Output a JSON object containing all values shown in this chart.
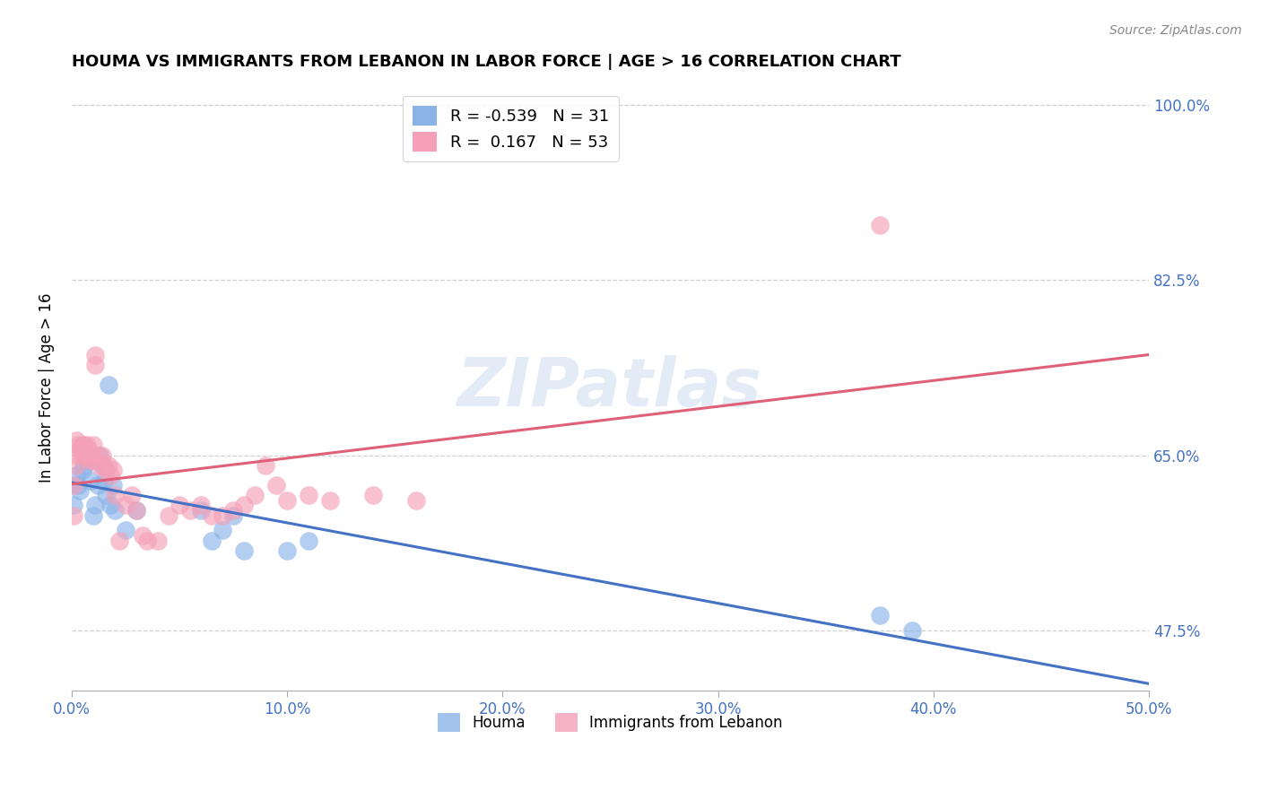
{
  "title": "HOUMA VS IMMIGRANTS FROM LEBANON IN LABOR FORCE | AGE > 16 CORRELATION CHART",
  "source": "Source: ZipAtlas.com",
  "xlabel_ticks": [
    "0.0%",
    "10.0%",
    "20.0%",
    "30.0%",
    "40.0%",
    "50.0%"
  ],
  "xlabel_vals": [
    0.0,
    0.1,
    0.2,
    0.3,
    0.4,
    0.5
  ],
  "ylabel_ticks": [
    "100.0%",
    "82.5%",
    "65.0%",
    "47.5%"
  ],
  "ylabel_vals": [
    1.0,
    0.825,
    0.65,
    0.475
  ],
  "ylabel_label": "In Labor Force | Age > 16",
  "legend_labels": [
    "Houma",
    "Immigrants from Lebanon"
  ],
  "houma_R": -0.539,
  "houma_N": 31,
  "lebanon_R": 0.167,
  "lebanon_N": 53,
  "houma_color": "#8ab4e8",
  "lebanon_color": "#f4a0b8",
  "houma_line_color": "#4472c4",
  "lebanon_line_color": "#e0607a",
  "watermark": "ZIPatlas",
  "houma_x": [
    0.001,
    0.002,
    0.003,
    0.004,
    0.005,
    0.006,
    0.007,
    0.008,
    0.009,
    0.01,
    0.011,
    0.012,
    0.013,
    0.014,
    0.015,
    0.016,
    0.017,
    0.018,
    0.019,
    0.02,
    0.025,
    0.03,
    0.06,
    0.065,
    0.07,
    0.075,
    0.08,
    0.1,
    0.11,
    0.375,
    0.39
  ],
  "houma_y": [
    0.6,
    0.63,
    0.62,
    0.615,
    0.635,
    0.64,
    0.645,
    0.65,
    0.625,
    0.59,
    0.6,
    0.62,
    0.65,
    0.64,
    0.625,
    0.61,
    0.72,
    0.6,
    0.62,
    0.595,
    0.575,
    0.595,
    0.595,
    0.565,
    0.575,
    0.59,
    0.555,
    0.555,
    0.565,
    0.49,
    0.475
  ],
  "lebanon_x": [
    0.001,
    0.001,
    0.002,
    0.002,
    0.003,
    0.003,
    0.004,
    0.005,
    0.005,
    0.006,
    0.006,
    0.007,
    0.007,
    0.008,
    0.008,
    0.009,
    0.01,
    0.01,
    0.011,
    0.011,
    0.012,
    0.013,
    0.014,
    0.015,
    0.016,
    0.017,
    0.018,
    0.019,
    0.02,
    0.022,
    0.025,
    0.028,
    0.03,
    0.033,
    0.035,
    0.04,
    0.045,
    0.05,
    0.055,
    0.06,
    0.065,
    0.07,
    0.075,
    0.08,
    0.085,
    0.09,
    0.095,
    0.1,
    0.11,
    0.12,
    0.14,
    0.16,
    0.375
  ],
  "lebanon_y": [
    0.59,
    0.62,
    0.64,
    0.665,
    0.66,
    0.65,
    0.655,
    0.66,
    0.65,
    0.655,
    0.66,
    0.66,
    0.65,
    0.655,
    0.645,
    0.65,
    0.66,
    0.645,
    0.75,
    0.74,
    0.65,
    0.64,
    0.65,
    0.64,
    0.635,
    0.64,
    0.63,
    0.635,
    0.61,
    0.565,
    0.6,
    0.61,
    0.595,
    0.57,
    0.565,
    0.565,
    0.59,
    0.6,
    0.595,
    0.6,
    0.59,
    0.59,
    0.595,
    0.6,
    0.61,
    0.64,
    0.62,
    0.605,
    0.61,
    0.605,
    0.61,
    0.605,
    0.88
  ],
  "xlim": [
    0.0,
    0.5
  ],
  "ylim": [
    0.415,
    1.02
  ],
  "title_fontsize": 13,
  "axis_tick_color": "#4472c4",
  "grid_color": "#d0d0d0",
  "background_color": "#ffffff"
}
